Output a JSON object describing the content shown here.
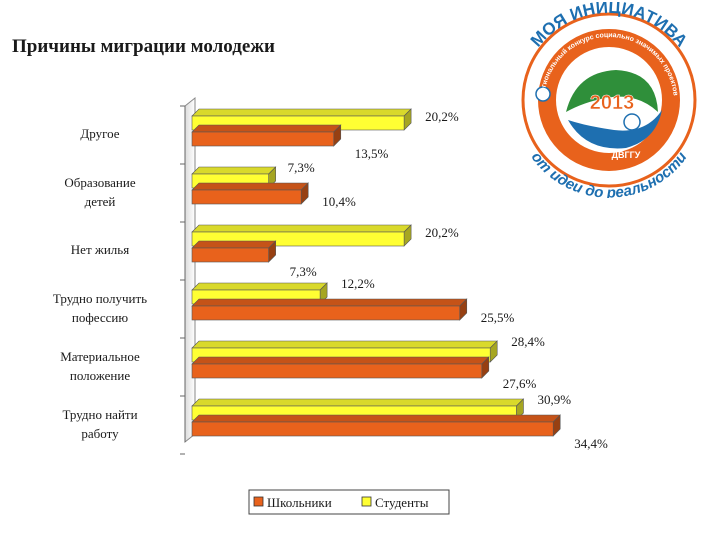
{
  "title": "Причины миграции молодежи",
  "chart_data": {
    "type": "bar",
    "orientation": "horizontal",
    "title": "Причины миграции молодежи",
    "categories": [
      [
        "Другое"
      ],
      [
        "Образование",
        "детей"
      ],
      [
        "Нет жилья"
      ],
      [
        "Трудно получить",
        "пофессию"
      ],
      [
        "Материальное",
        "положение"
      ],
      [
        "Трудно найти",
        "работу"
      ]
    ],
    "series": [
      {
        "name": "Студенты",
        "color": "#ffff33",
        "values": [
          20.2,
          7.3,
          20.2,
          12.2,
          28.4,
          30.9
        ],
        "labels": [
          "20,2%",
          "7,3%",
          "20,2%",
          "12,2%",
          "28,4%",
          "30,9%"
        ]
      },
      {
        "name": "Школьники",
        "color": "#e8621c",
        "values": [
          13.5,
          10.4,
          7.3,
          25.5,
          27.6,
          34.4
        ],
        "labels": [
          "13,5%",
          "10,4%",
          "7,3%",
          "25,5%",
          "27,6%",
          "34,4%"
        ]
      }
    ],
    "legend_order": [
      "Школьники",
      "Студенты"
    ],
    "xlim": [
      0,
      40
    ],
    "legend_position": "bottom",
    "grid": false
  },
  "logo": {
    "top_text": "МОЯ ИНИЦИАТИВА",
    "inner_text": "региональный конкурс социально значимых проектов",
    "year": "2013",
    "org": "ДВГГУ",
    "bottom_text": "от идеи до реальности",
    "colors": {
      "orange": "#e8621c",
      "blue": "#1e6fb0",
      "green": "#2f8f3a"
    }
  }
}
